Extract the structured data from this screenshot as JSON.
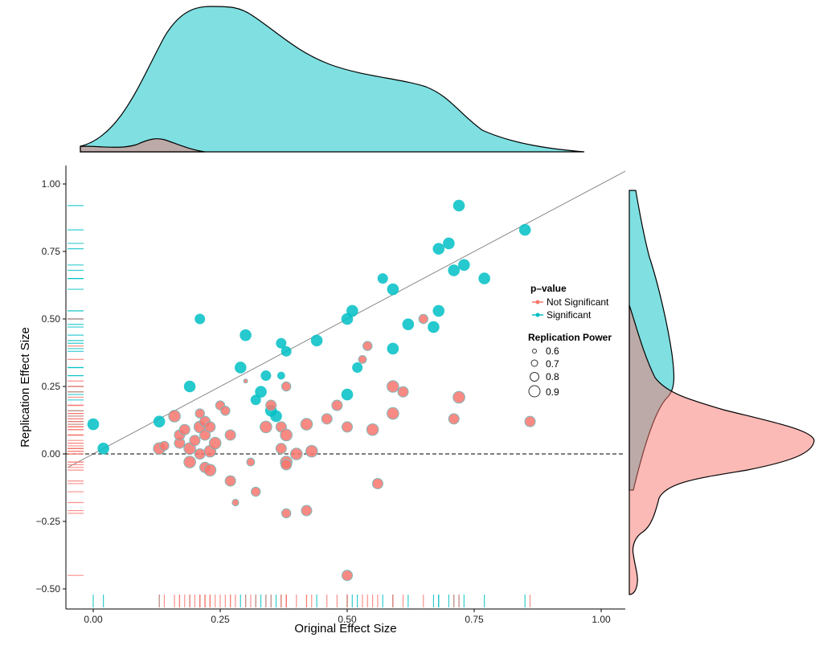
{
  "chart_data": {
    "type": "scatter",
    "xlabel": "Original Effect Size",
    "ylabel": "Replication Effect Size",
    "xlim": [
      -0.05,
      1.05
    ],
    "ylim": [
      -0.57,
      1.07
    ],
    "x_ticks": [
      "0.00",
      "0.25",
      "0.50",
      "0.75",
      "1.00"
    ],
    "y_ticks": [
      "-0.50",
      "-0.25",
      "0.00",
      "0.25",
      "0.50",
      "0.75",
      "1.00"
    ],
    "reference_lines": {
      "identity": "y = x",
      "zero": "y = 0"
    },
    "colors": {
      "not_significant": "#F8766D",
      "significant": "#00BFC4"
    },
    "legend": {
      "position": "right",
      "color_title": "p–value",
      "color_entries": [
        "Not Significant",
        "Significant"
      ],
      "size_title": "Replication Power",
      "size_entries": [
        "0.6",
        "0.7",
        "0.8",
        "0.9"
      ]
    },
    "series": [
      {
        "name": "Significant",
        "points": [
          [
            0.0,
            0.11,
            0.9
          ],
          [
            0.02,
            0.02,
            0.9
          ],
          [
            0.13,
            0.12,
            0.9
          ],
          [
            0.19,
            0.25,
            0.9
          ],
          [
            0.21,
            0.5,
            0.85
          ],
          [
            0.29,
            0.32,
            0.9
          ],
          [
            0.3,
            0.44,
            0.9
          ],
          [
            0.32,
            0.2,
            0.85
          ],
          [
            0.33,
            0.23,
            0.9
          ],
          [
            0.34,
            0.29,
            0.85
          ],
          [
            0.35,
            0.16,
            0.9
          ],
          [
            0.36,
            0.14,
            0.9
          ],
          [
            0.37,
            0.29,
            0.75
          ],
          [
            0.37,
            0.41,
            0.85
          ],
          [
            0.38,
            0.38,
            0.85
          ],
          [
            0.44,
            0.42,
            0.9
          ],
          [
            0.5,
            0.5,
            0.9
          ],
          [
            0.5,
            0.22,
            0.9
          ],
          [
            0.51,
            0.53,
            0.9
          ],
          [
            0.52,
            0.32,
            0.85
          ],
          [
            0.57,
            0.65,
            0.85
          ],
          [
            0.59,
            0.61,
            0.9
          ],
          [
            0.59,
            0.39,
            0.9
          ],
          [
            0.62,
            0.48,
            0.9
          ],
          [
            0.67,
            0.47,
            0.9
          ],
          [
            0.68,
            0.76,
            0.9
          ],
          [
            0.68,
            0.53,
            0.9
          ],
          [
            0.7,
            0.78,
            0.9
          ],
          [
            0.71,
            0.68,
            0.9
          ],
          [
            0.72,
            0.92,
            0.9
          ],
          [
            0.73,
            0.7,
            0.9
          ],
          [
            0.77,
            0.65,
            0.9
          ],
          [
            0.85,
            0.83,
            0.9
          ]
        ]
      },
      {
        "name": "Not Significant",
        "points": [
          [
            0.13,
            0.02,
            0.9
          ],
          [
            0.14,
            0.03,
            0.8
          ],
          [
            0.16,
            0.14,
            0.9
          ],
          [
            0.17,
            0.04,
            0.85
          ],
          [
            0.17,
            0.07,
            0.85
          ],
          [
            0.18,
            0.09,
            0.85
          ],
          [
            0.19,
            0.02,
            0.9
          ],
          [
            0.19,
            -0.03,
            0.9
          ],
          [
            0.2,
            0.05,
            0.85
          ],
          [
            0.21,
            0.1,
            0.9
          ],
          [
            0.21,
            0.15,
            0.8
          ],
          [
            0.21,
            0.0,
            0.85
          ],
          [
            0.22,
            0.12,
            0.85
          ],
          [
            0.22,
            0.07,
            0.85
          ],
          [
            0.22,
            -0.05,
            0.85
          ],
          [
            0.23,
            0.01,
            0.9
          ],
          [
            0.23,
            0.1,
            0.85
          ],
          [
            0.23,
            -0.06,
            0.9
          ],
          [
            0.24,
            0.04,
            0.9
          ],
          [
            0.25,
            0.18,
            0.8
          ],
          [
            0.26,
            0.16,
            0.8
          ],
          [
            0.27,
            -0.1,
            0.85
          ],
          [
            0.27,
            0.07,
            0.85
          ],
          [
            0.28,
            -0.18,
            0.7
          ],
          [
            0.3,
            0.27,
            0.6
          ],
          [
            0.31,
            -0.03,
            0.75
          ],
          [
            0.32,
            -0.14,
            0.8
          ],
          [
            0.34,
            0.1,
            0.9
          ],
          [
            0.35,
            0.18,
            0.85
          ],
          [
            0.37,
            0.1,
            0.85
          ],
          [
            0.37,
            0.02,
            0.85
          ],
          [
            0.38,
            0.07,
            0.9
          ],
          [
            0.38,
            -0.03,
            0.9
          ],
          [
            0.38,
            -0.04,
            0.85
          ],
          [
            0.38,
            0.25,
            0.8
          ],
          [
            0.38,
            -0.22,
            0.8
          ],
          [
            0.4,
            0.0,
            0.9
          ],
          [
            0.42,
            -0.21,
            0.85
          ],
          [
            0.42,
            0.11,
            0.9
          ],
          [
            0.43,
            0.01,
            0.9
          ],
          [
            0.46,
            0.13,
            0.85
          ],
          [
            0.48,
            0.18,
            0.85
          ],
          [
            0.5,
            0.1,
            0.85
          ],
          [
            0.5,
            -0.45,
            0.85
          ],
          [
            0.53,
            0.35,
            0.75
          ],
          [
            0.54,
            0.4,
            0.8
          ],
          [
            0.55,
            0.09,
            0.9
          ],
          [
            0.56,
            -0.11,
            0.85
          ],
          [
            0.59,
            0.25,
            0.9
          ],
          [
            0.59,
            0.15,
            0.9
          ],
          [
            0.61,
            0.23,
            0.85
          ],
          [
            0.65,
            0.5,
            0.8
          ],
          [
            0.71,
            0.13,
            0.85
          ],
          [
            0.72,
            0.21,
            0.9
          ],
          [
            0.86,
            0.12,
            0.85
          ]
        ]
      }
    ],
    "marginal_densities": {
      "top": "distribution of Original Effect Size by p-value group",
      "right": "distribution of Replication Effect Size by p-value group"
    }
  }
}
